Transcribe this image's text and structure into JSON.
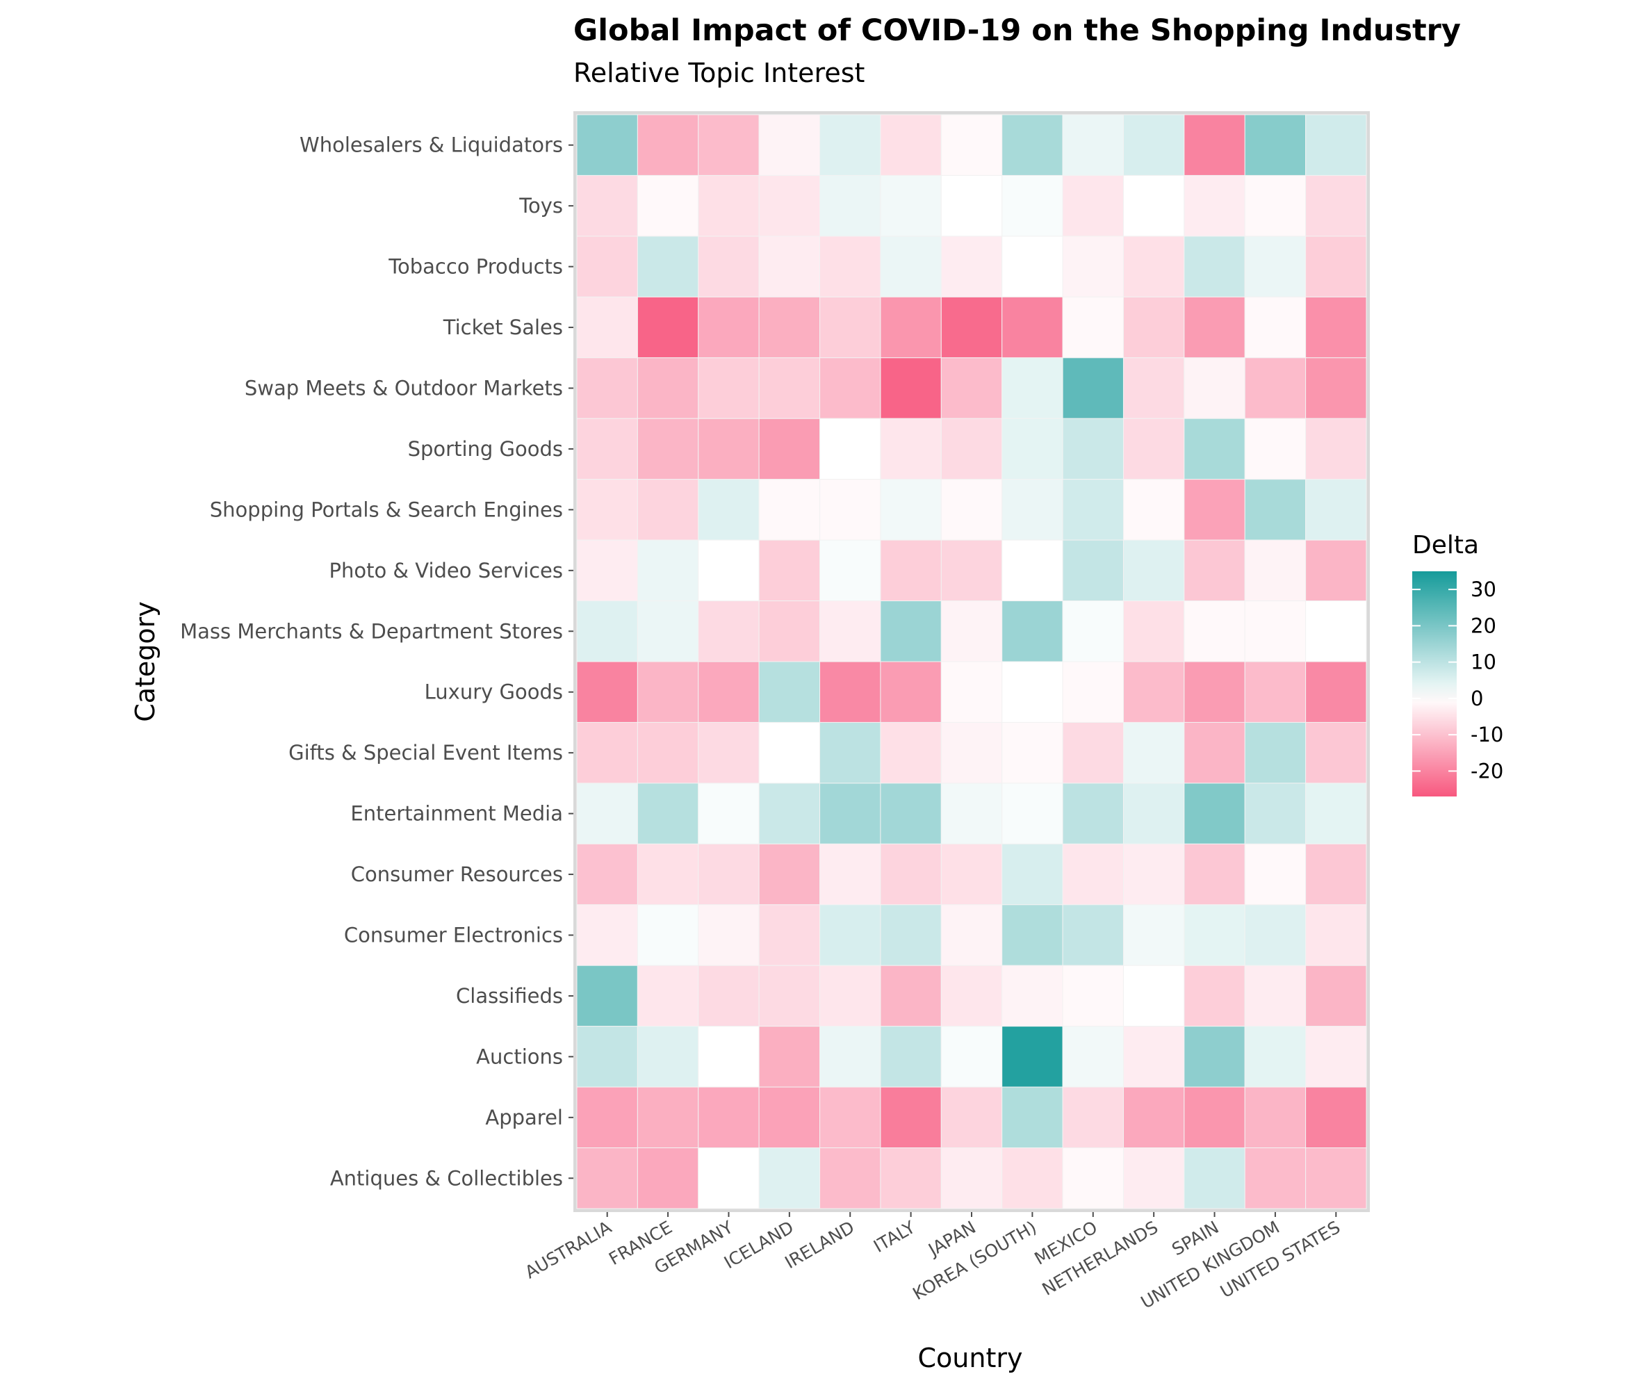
{
  "chart_data": {
    "type": "heatmap",
    "title": "Global Impact of COVID-19 on the Shopping Industry",
    "subtitle": "Relative Topic Interest",
    "xlabel": "Country",
    "ylabel": "Category",
    "x_categories": [
      "AUSTRALIA",
      "FRANCE",
      "GERMANY",
      "ICELAND",
      "IRELAND",
      "ITALY",
      "JAPAN",
      "KOREA (SOUTH)",
      "MEXICO",
      "NETHERLANDS",
      "SPAIN",
      "UNITED KINGDOM",
      "UNITED STATES"
    ],
    "y_categories": [
      "Wholesalers & Liquidators",
      "Toys",
      "Tobacco Products",
      "Ticket Sales",
      "Swap Meets & Outdoor Markets",
      "Sporting Goods",
      "Shopping Portals & Search Engines",
      "Photo & Video Services",
      "Mass Merchants & Department Stores",
      "Luxury Goods",
      "Gifts & Special Event Items",
      "Entertainment Media",
      "Consumer Resources",
      "Consumer Electronics",
      "Classifieds",
      "Auctions",
      "Apparel",
      "Antiques & Collectibles"
    ],
    "values": [
      [
        17,
        -13,
        -11,
        -2,
        5,
        -5,
        -1,
        13,
        3,
        6,
        -20,
        18,
        7
      ],
      [
        -6,
        -1,
        -5,
        -4,
        3,
        2,
        0,
        1,
        -4,
        0,
        -3,
        -1,
        -6
      ],
      [
        -7,
        8,
        -6,
        -3,
        -5,
        3,
        -3,
        0,
        -2,
        -5,
        8,
        3,
        -8
      ],
      [
        -4,
        -25,
        -14,
        -13,
        -8,
        -17,
        -24,
        -20,
        -1,
        -8,
        -16,
        -1,
        -18
      ],
      [
        -9,
        -12,
        -8,
        -8,
        -11,
        -25,
        -11,
        4,
        24,
        -6,
        -2,
        -11,
        -17
      ],
      [
        -7,
        -12,
        -13,
        -16,
        0,
        -4,
        -6,
        4,
        8,
        -6,
        13,
        -1,
        -6
      ],
      [
        -5,
        -7,
        5,
        -1,
        -1,
        2,
        -1,
        3,
        7,
        -1,
        -15,
        13,
        5
      ],
      [
        -3,
        3,
        0,
        -8,
        1,
        -8,
        -7,
        0,
        9,
        5,
        -9,
        -2,
        -12
      ],
      [
        5,
        3,
        -6,
        -8,
        -3,
        15,
        -2,
        15,
        1,
        -5,
        -1,
        -1,
        0
      ],
      [
        -20,
        -12,
        -14,
        11,
        -19,
        -16,
        -1,
        0,
        -1,
        -11,
        -16,
        -11,
        -19
      ],
      [
        -8,
        -8,
        -6,
        0,
        10,
        -5,
        -2,
        -1,
        -6,
        3,
        -12,
        11,
        -9
      ],
      [
        3,
        11,
        1,
        8,
        14,
        14,
        2,
        1,
        10,
        5,
        19,
        8,
        4
      ],
      [
        -10,
        -5,
        -6,
        -12,
        -3,
        -7,
        -5,
        6,
        -4,
        -3,
        -9,
        -1,
        -9
      ],
      [
        -3,
        1,
        -2,
        -6,
        6,
        8,
        -2,
        12,
        9,
        2,
        4,
        5,
        -4
      ],
      [
        20,
        -4,
        -6,
        -6,
        -4,
        -12,
        -4,
        -2,
        -1,
        0,
        -8,
        -3,
        -12
      ],
      [
        9,
        5,
        0,
        -13,
        3,
        9,
        1,
        33,
        2,
        -3,
        17,
        4,
        -3
      ],
      [
        -15,
        -13,
        -14,
        -15,
        -11,
        -21,
        -7,
        12,
        -6,
        -14,
        -17,
        -12,
        -20
      ],
      [
        -12,
        -14,
        0,
        5,
        -11,
        -8,
        -3,
        -5,
        -1,
        -3,
        7,
        -11,
        -11
      ]
    ],
    "legend": {
      "title": "Delta",
      "position": "right",
      "ticks": [
        30,
        20,
        10,
        0,
        -10,
        -20
      ],
      "range": [
        -27,
        35
      ],
      "colors": {
        "low": "#f7587f",
        "mid": "#ffffff",
        "high": "#169b9a"
      }
    },
    "grid": false
  }
}
